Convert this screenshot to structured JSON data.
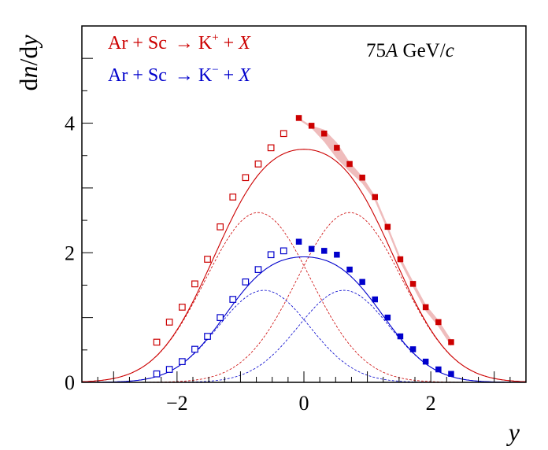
{
  "chart_data": {
    "type": "scatter",
    "title": "",
    "energy_label": "75A GeV/c",
    "xlabel": "y",
    "ylabel": "dn/dy",
    "xlim": [
      -3.5,
      3.5
    ],
    "ylim": [
      0,
      5.5
    ],
    "x_ticks": [
      "−2",
      "0",
      "2"
    ],
    "x_tick_values": [
      -2,
      0,
      2
    ],
    "y_ticks": [
      "0",
      "2",
      "4"
    ],
    "y_tick_values": [
      0,
      2,
      4
    ],
    "legend": [
      {
        "name": "Ar + Sc → K⁺ + X",
        "color": "#cc0000"
      },
      {
        "name": "Ar + Sc → K⁻ + X",
        "color": "#0000cc"
      }
    ],
    "series": [
      {
        "name": "K+ measured",
        "color": "#cc0000",
        "marker": "filled-square",
        "x": [
          -0.08,
          0.12,
          0.32,
          0.52,
          0.72,
          0.92,
          1.12,
          1.32,
          1.52,
          1.72,
          1.92,
          2.12,
          2.32
        ],
        "y": [
          4.08,
          3.96,
          3.84,
          3.62,
          3.37,
          3.16,
          2.86,
          2.4,
          1.9,
          1.52,
          1.16,
          0.93,
          0.62
        ],
        "band_lo": [
          4.05,
          3.92,
          3.71,
          3.45,
          3.25,
          3.07,
          2.8,
          2.34,
          1.85,
          1.47,
          1.1,
          0.86,
          0.56
        ],
        "band_hi": [
          4.08,
          3.96,
          3.9,
          3.7,
          3.4,
          3.18,
          2.88,
          2.42,
          1.93,
          1.56,
          1.2,
          0.96,
          0.66
        ]
      },
      {
        "name": "K+ reflected",
        "color": "#cc0000",
        "marker": "open-square",
        "x": [
          -2.32,
          -2.12,
          -1.92,
          -1.72,
          -1.52,
          -1.32,
          -1.12,
          -0.92,
          -0.72,
          -0.52,
          -0.32
        ],
        "y": [
          0.62,
          0.93,
          1.16,
          1.52,
          1.9,
          2.4,
          2.86,
          3.16,
          3.37,
          3.62,
          3.84
        ]
      },
      {
        "name": "K- measured",
        "color": "#0000cc",
        "marker": "filled-square",
        "x": [
          -0.08,
          0.12,
          0.32,
          0.52,
          0.72,
          0.92,
          1.12,
          1.32,
          1.52,
          1.72,
          1.92,
          2.12,
          2.32
        ],
        "y": [
          2.17,
          2.06,
          2.03,
          1.97,
          1.74,
          1.55,
          1.28,
          1.0,
          0.71,
          0.51,
          0.32,
          0.2,
          0.13
        ]
      },
      {
        "name": "K- reflected",
        "color": "#0000cc",
        "marker": "open-square",
        "x": [
          -2.32,
          -2.12,
          -1.92,
          -1.72,
          -1.52,
          -1.32,
          -1.12,
          -0.92,
          -0.72,
          -0.52,
          -0.32
        ],
        "y": [
          0.13,
          0.2,
          0.32,
          0.51,
          0.71,
          1.0,
          1.28,
          1.55,
          1.74,
          1.97,
          2.03
        ]
      }
    ],
    "fits": [
      {
        "name": "K+ double-Gaussian fit",
        "color": "#cc0000",
        "center": 0.72,
        "sigma": 0.83,
        "amplitude": 2.62
      },
      {
        "name": "K- double-Gaussian fit",
        "color": "#0000cc",
        "center": 0.63,
        "sigma": 0.72,
        "amplitude": 1.42
      }
    ]
  }
}
